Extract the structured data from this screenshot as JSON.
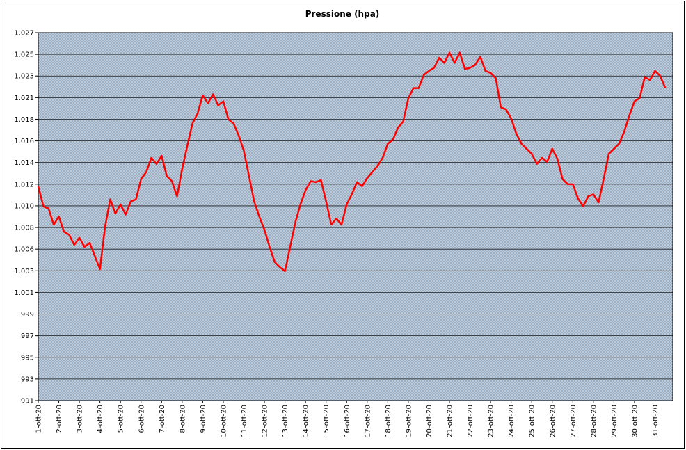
{
  "chart_data": {
    "type": "line",
    "title": "Pressione (hpa)",
    "categories": [
      "1-ott-20",
      null,
      null,
      null,
      "2-ott-20",
      null,
      null,
      null,
      "3-ott-20",
      null,
      null,
      null,
      "4-ott-20",
      null,
      null,
      null,
      "5-ott-20",
      null,
      null,
      null,
      "6-ott-20",
      null,
      null,
      null,
      "7-ott-20",
      null,
      null,
      null,
      "8-ott-20",
      null,
      null,
      null,
      "9-ott-20",
      null,
      null,
      null,
      "10-ott-20",
      null,
      null,
      null,
      "11-ott-20",
      null,
      null,
      null,
      "12-ott-20",
      null,
      null,
      null,
      "13-ott-20",
      null,
      null,
      null,
      "14-ott-20",
      null,
      null,
      null,
      "15-ott-20",
      null,
      null,
      null,
      "16-ott-20",
      null,
      null,
      null,
      "17-ott-20",
      null,
      null,
      null,
      "18-ott-20",
      null,
      null,
      null,
      "19-ott-20",
      null,
      null,
      null,
      "20-ott-20",
      null,
      null,
      null,
      "21-ott-20",
      null,
      null,
      null,
      "22-ott-20",
      null,
      null,
      null,
      "23-ott-20",
      null,
      null,
      null,
      "24-ott-20",
      null,
      null,
      null,
      "25-ott-20",
      null,
      null,
      null,
      "26-ott-20",
      null,
      null,
      null,
      "27-ott-20",
      null,
      null,
      null,
      "28-ott-20",
      null,
      null,
      null,
      "29-ott-20",
      null,
      null,
      null,
      "30-ott-20",
      null,
      null,
      null,
      "31-ott-20",
      null,
      null
    ],
    "series": [
      {
        "color": "#ff0000",
        "values": [
          1011.8,
          1009.8,
          1009.6,
          1008.0,
          1008.8,
          1007.3,
          1007.0,
          1006.0,
          1006.7,
          1005.8,
          1006.2,
          1004.9,
          1003.6,
          1007.8,
          1010.5,
          1009.1,
          1010.0,
          1009.0,
          1010.3,
          1010.5,
          1012.5,
          1013.2,
          1014.6,
          1014.0,
          1014.8,
          1012.8,
          1012.3,
          1010.8,
          1013.5,
          1015.8,
          1018.0,
          1019.0,
          1020.8,
          1020.0,
          1020.9,
          1019.8,
          1020.2,
          1018.4,
          1018.0,
          1016.8,
          1015.3,
          1012.8,
          1010.3,
          1008.8,
          1007.5,
          1005.8,
          1004.3,
          1003.8,
          1003.4,
          1005.8,
          1008.2,
          1010.0,
          1011.4,
          1012.3,
          1012.2,
          1012.4,
          1010.3,
          1008.0,
          1008.6,
          1008.0,
          1010.0,
          1011.0,
          1012.2,
          1011.8,
          1012.6,
          1013.2,
          1013.8,
          1014.6,
          1016.0,
          1016.4,
          1017.6,
          1018.2,
          1020.5,
          1021.5,
          1021.5,
          1022.8,
          1023.2,
          1023.5,
          1024.5,
          1024.0,
          1025.0,
          1024.0,
          1025.0,
          1023.4,
          1023.5,
          1023.8,
          1024.6,
          1023.2,
          1023.0,
          1022.5,
          1019.6,
          1019.4,
          1018.5,
          1017.0,
          1016.0,
          1015.5,
          1015.0,
          1014.0,
          1014.6,
          1014.2,
          1015.5,
          1014.5,
          1012.5,
          1012.0,
          1012.0,
          1010.6,
          1009.8,
          1010.8,
          1011.0,
          1010.2,
          1012.5,
          1015.0,
          1015.5,
          1016.0,
          1017.2,
          1018.8,
          1020.2,
          1020.5,
          1022.6,
          1022.3,
          1023.2,
          1022.7,
          1021.5
        ]
      }
    ],
    "ylim": [
      990.6,
      1026.98
    ],
    "yticks": [
      {
        "value": 990.6,
        "label": "991"
      },
      {
        "value": 992.74,
        "label": "993"
      },
      {
        "value": 994.88,
        "label": "995"
      },
      {
        "value": 997.02,
        "label": "997"
      },
      {
        "value": 999.16,
        "label": "999"
      },
      {
        "value": 1001.3,
        "label": "1.001"
      },
      {
        "value": 1003.44,
        "label": "1.003"
      },
      {
        "value": 1005.58,
        "label": "1.006"
      },
      {
        "value": 1007.72,
        "label": "1.008"
      },
      {
        "value": 1009.86,
        "label": "1.010"
      },
      {
        "value": 1012,
        "label": "1.012"
      },
      {
        "value": 1014.14,
        "label": "1.014"
      },
      {
        "value": 1016.28,
        "label": "1.016"
      },
      {
        "value": 1018.42,
        "label": "1.018"
      },
      {
        "value": 1020.56,
        "label": "1.021"
      },
      {
        "value": 1022.7,
        "label": "1.023"
      },
      {
        "value": 1024.84,
        "label": "1.025"
      },
      {
        "value": 1026.98,
        "label": "1.027"
      }
    ],
    "grid": true
  }
}
